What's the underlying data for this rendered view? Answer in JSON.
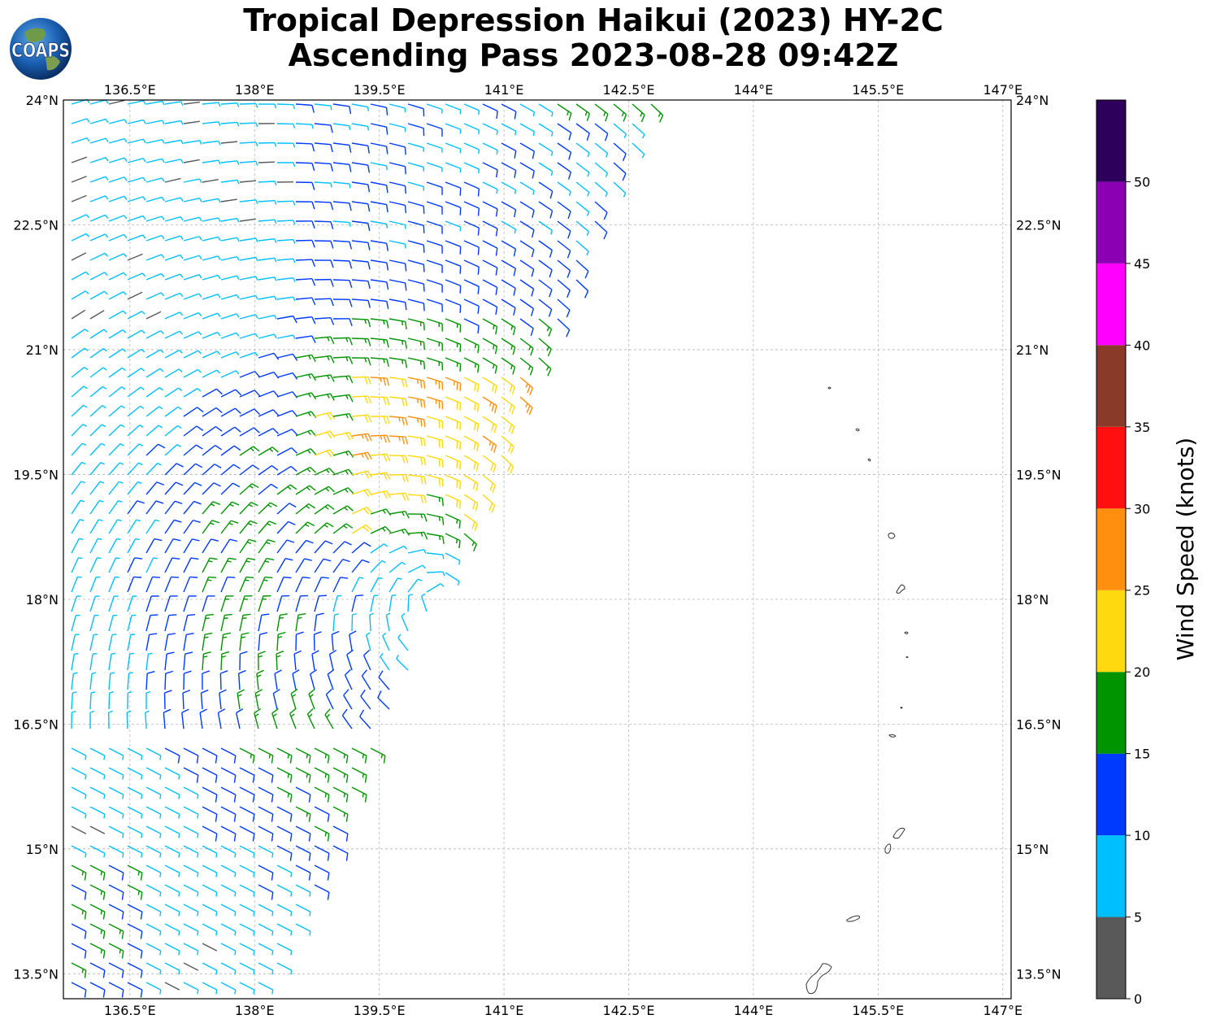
{
  "title": {
    "line1": "Tropical Depression Haikui (2023) HY-2C",
    "line2": "Ascending Pass 2023-08-28 09:42Z"
  },
  "logo": {
    "text": "COAPS"
  },
  "map": {
    "lon_range": [
      135.7,
      147.1
    ],
    "lat_range": [
      13.2,
      24.0
    ],
    "lon_ticks": [
      "136.5°E",
      "138°E",
      "139.5°E",
      "141°E",
      "142.5°E",
      "144°E",
      "145.5°E",
      "147°E"
    ],
    "lat_ticks": [
      "24°N",
      "22.5°N",
      "21°N",
      "19.5°N",
      "18°N",
      "16.5°N",
      "15°N",
      "13.5°N"
    ],
    "lon_values": [
      136.5,
      138,
      139.5,
      141,
      142.5,
      144,
      145.5,
      147
    ],
    "lat_values": [
      24,
      22.5,
      21,
      19.5,
      18,
      16.5,
      15,
      13.5
    ],
    "grid": true
  },
  "colorbar": {
    "label": "Wind Speed (knots)",
    "tick_labels": [
      "0",
      "5",
      "10",
      "15",
      "20",
      "25",
      "30",
      "35",
      "40",
      "45",
      "50"
    ],
    "colors": [
      "#595959",
      "#00bfff",
      "#0039ff",
      "#009400",
      "#ffd90f",
      "#ff8f0f",
      "#ff0f0f",
      "#8a3a29",
      "#ff00ff",
      "#8c00b3",
      "#2d005c"
    ]
  },
  "islands_color": "#333333"
}
